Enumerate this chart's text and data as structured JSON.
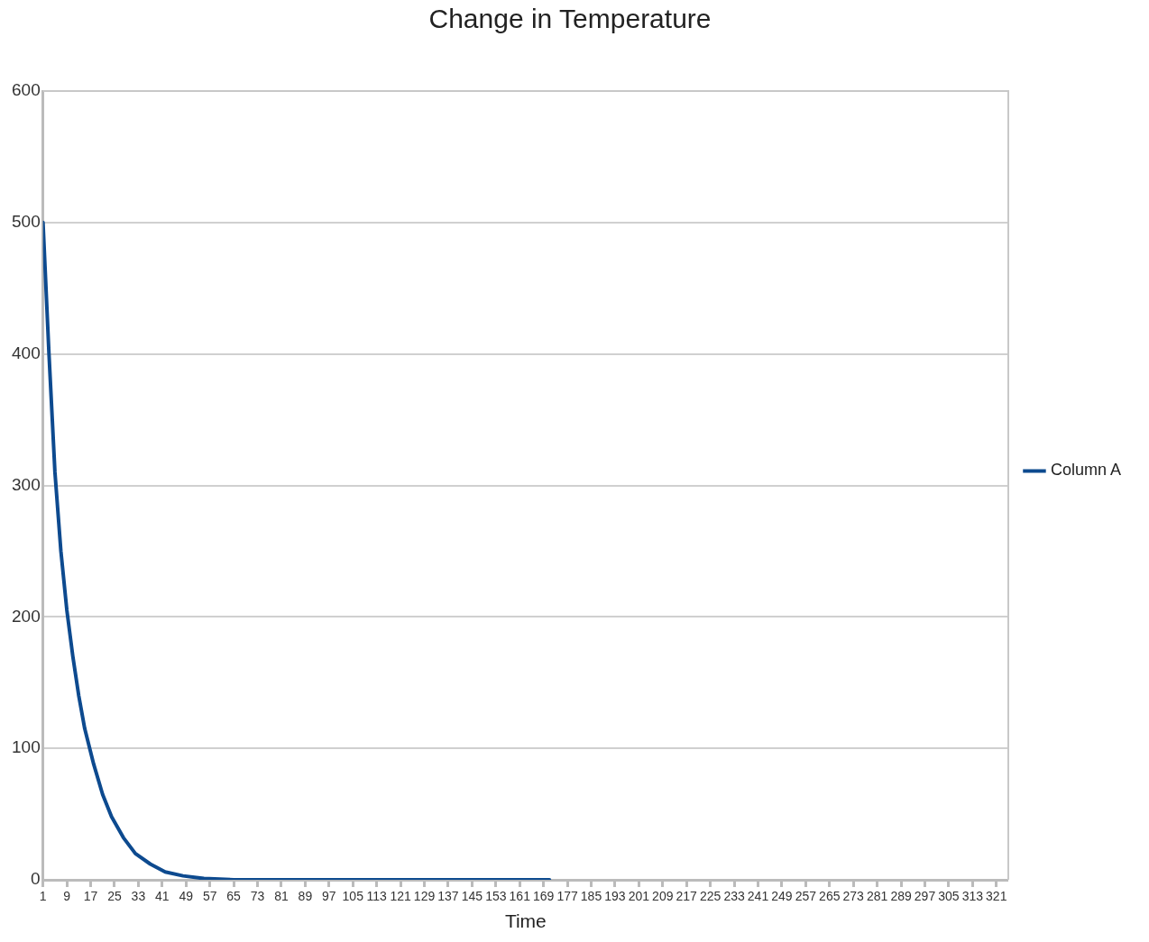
{
  "chart_data": {
    "type": "line",
    "title": "Change in Temperature",
    "xlabel": "Time",
    "x": [
      1,
      3,
      5,
      7,
      9,
      11,
      13,
      15,
      18,
      21,
      24,
      28,
      32,
      37,
      42,
      48,
      55,
      65,
      171
    ],
    "series": [
      {
        "name": "Column A",
        "color": "#0d4a8f",
        "values": [
          500,
          400,
          310,
          250,
          205,
          170,
          140,
          115,
          88,
          65,
          48,
          32,
          20,
          12,
          6,
          3,
          1,
          0,
          0
        ]
      }
    ],
    "xlim": [
      1,
      325
    ],
    "xticks": [
      1,
      9,
      17,
      25,
      33,
      41,
      49,
      57,
      65,
      73,
      81,
      89,
      97,
      105,
      113,
      121,
      129,
      137,
      145,
      153,
      161,
      169,
      177,
      185,
      193,
      201,
      209,
      217,
      225,
      233,
      241,
      249,
      257,
      265,
      273,
      281,
      289,
      297,
      305,
      313,
      321
    ],
    "ylim": [
      0,
      600
    ],
    "yticks": [
      0,
      100,
      200,
      300,
      400,
      500,
      600
    ],
    "grid": "y",
    "legend": "right",
    "marker": "none",
    "line_style": "solid"
  }
}
